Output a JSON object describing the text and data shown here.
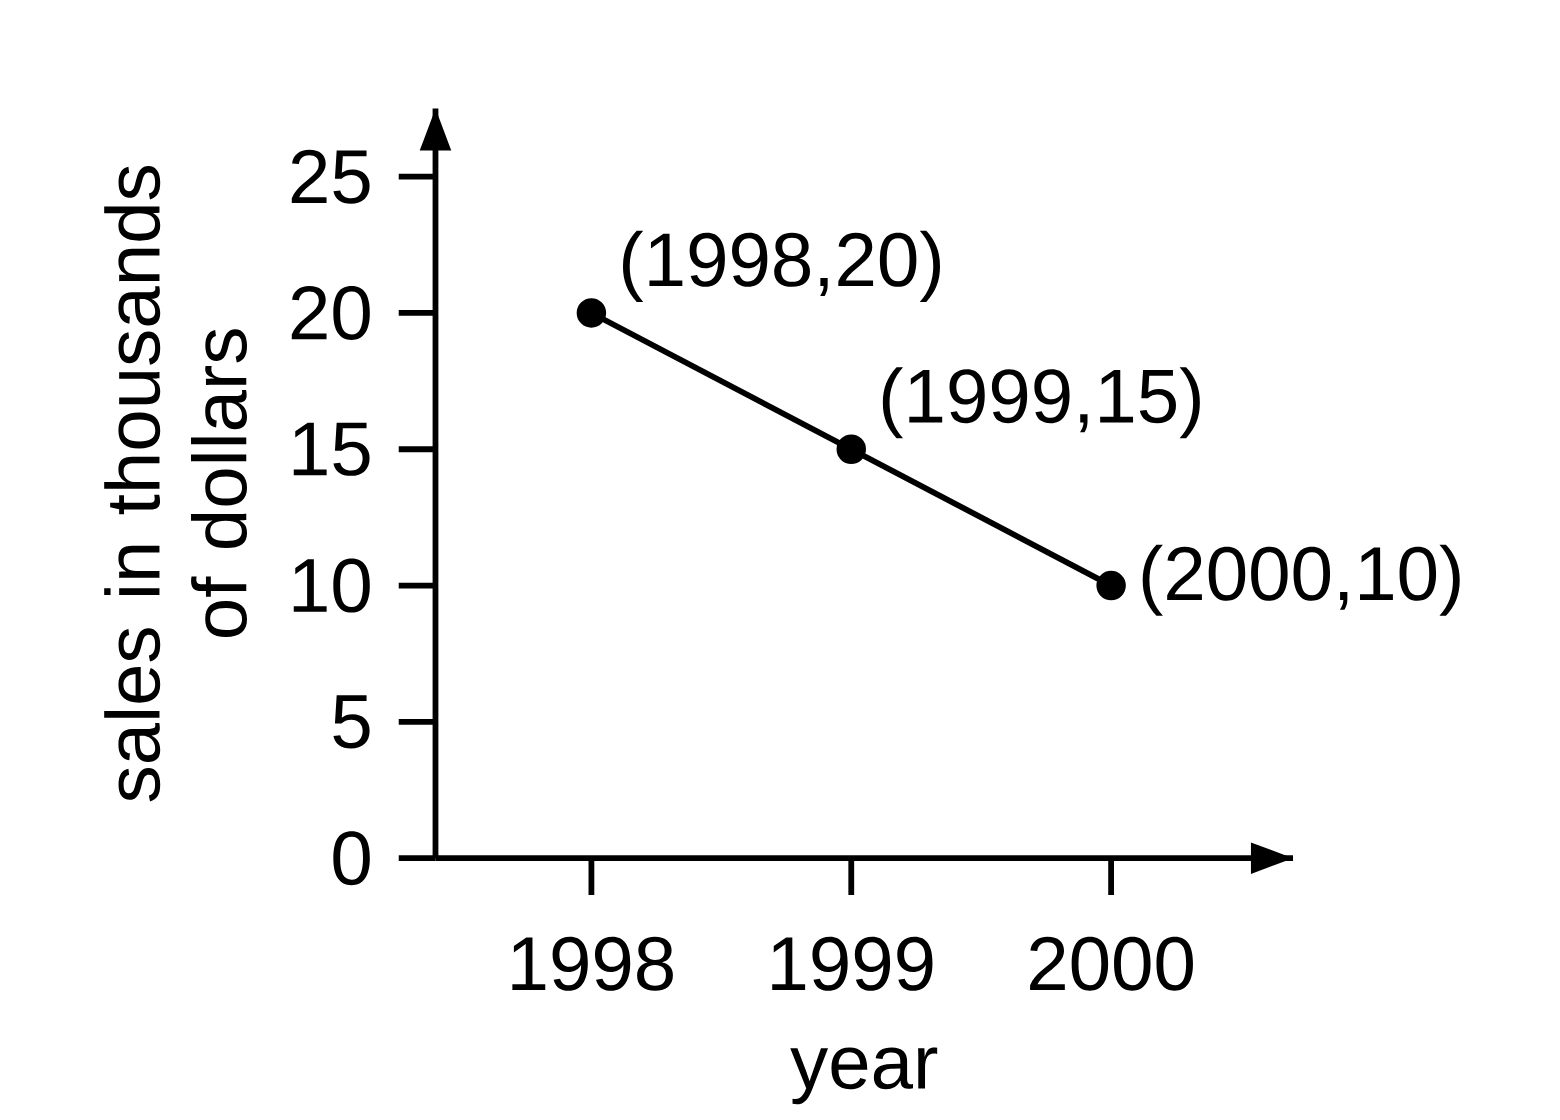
{
  "chart_data": {
    "type": "line",
    "xlabel": "year",
    "ylabel": "sales in thousands of dollars",
    "x": [
      1998,
      1999,
      2000
    ],
    "values": [
      20,
      15,
      10
    ],
    "color": "#000000",
    "marker": "circle",
    "line_style": "solid",
    "xlim": [
      1997.4,
      2000.7
    ],
    "ylim": [
      0,
      27.5
    ],
    "xticks": [
      1998,
      1999,
      2000
    ],
    "yticks": [
      0,
      5,
      10,
      15,
      20,
      25
    ],
    "annotations": [
      {
        "text": "(1998,20)",
        "x": 1998,
        "y": 20
      },
      {
        "text": "(1999,15)",
        "x": 1999,
        "y": 15
      },
      {
        "text": "(2000,10)",
        "x": 2000,
        "y": 10
      }
    ]
  }
}
